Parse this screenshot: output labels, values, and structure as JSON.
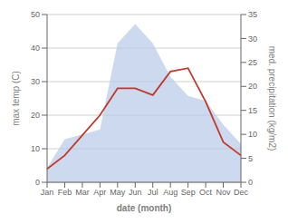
{
  "chart_data": {
    "type": "line",
    "xlabel": "date (month)",
    "ylabel": "max temp (C)",
    "y2label": "med. precipitation (kg/m2)",
    "categories": [
      "Jan",
      "Feb",
      "Mar",
      "Apr",
      "May",
      "Jun",
      "Jul",
      "Aug",
      "Sep",
      "Oct",
      "Nov",
      "Dec"
    ],
    "series": [
      {
        "type": "area",
        "axis": "y2",
        "color": "#b8c9e8",
        "values": [
          3,
          9,
          10,
          11,
          29,
          33,
          29,
          22,
          18,
          17,
          12,
          8
        ]
      },
      {
        "type": "line",
        "color": "#c0392b",
        "values": [
          4,
          8,
          14,
          20,
          28,
          28,
          26,
          33,
          34,
          24,
          12,
          8
        ]
      }
    ],
    "ylim": [
      0,
      50
    ],
    "yticks": [
      0,
      10,
      20,
      30,
      40,
      50
    ],
    "y2lim": [
      0,
      35
    ],
    "y2ticks": [
      0,
      5,
      10,
      15,
      20,
      25,
      30,
      35
    ],
    "grid": true
  }
}
